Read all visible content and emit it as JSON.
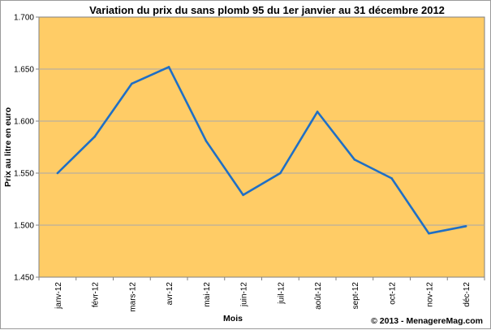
{
  "chart_data": {
    "type": "line",
    "title": "Variation du prix du sans plomb 95 du 1er janvier au 31 décembre 2012",
    "xlabel": "Mois",
    "ylabel": "Prix au litre en euro",
    "categories": [
      "janv-12",
      "févr-12",
      "mars-12",
      "avr-12",
      "mai-12",
      "juin-12",
      "juil-12",
      "août-12",
      "sept-12",
      "oct-12",
      "nov-12",
      "déc-12"
    ],
    "series": [
      {
        "values": [
          1.55,
          1.585,
          1.636,
          1.652,
          1.581,
          1.529,
          1.55,
          1.609,
          1.563,
          1.545,
          1.492,
          1.499
        ],
        "color": "#1f6fc5"
      }
    ],
    "ylim": [
      1.45,
      1.7
    ],
    "yticks": [
      "1.450",
      "1.500",
      "1.550",
      "1.600",
      "1.650",
      "1.700"
    ],
    "ytick_values": [
      1.45,
      1.5,
      1.55,
      1.6,
      1.65,
      1.7
    ],
    "grid": true,
    "plot_background": "#ffcc66",
    "gridline_color": "#a9a9a9",
    "credit": "© 2013 - MenagereMag.com"
  }
}
